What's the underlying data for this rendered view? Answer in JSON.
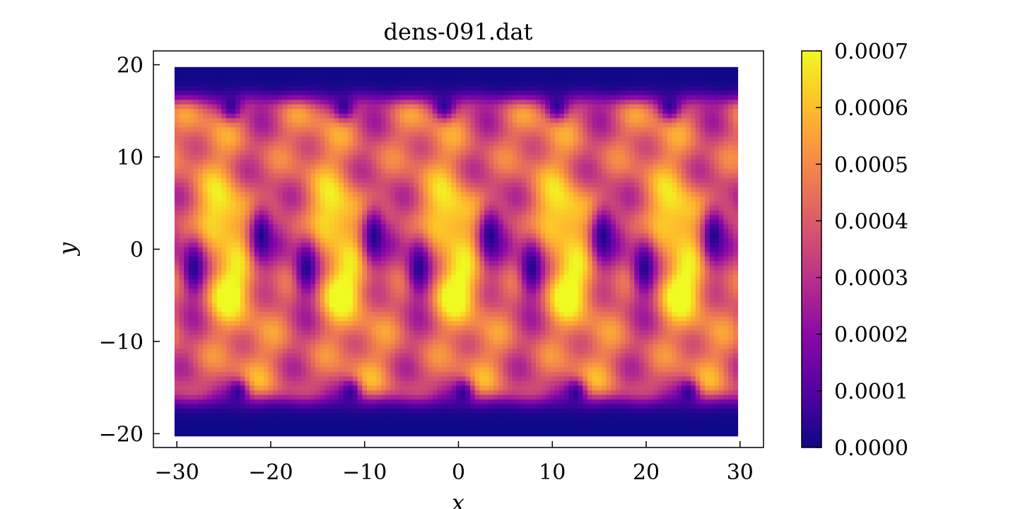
{
  "chart_data": {
    "type": "heatmap",
    "title": "dens-091.dat",
    "xlabel": "x",
    "ylabel": "y",
    "xlim": [
      -32.5,
      32.5
    ],
    "ylim": [
      -21.5,
      21.5
    ],
    "x_ticks": [
      -30,
      -20,
      -10,
      0,
      10,
      20,
      30
    ],
    "x_tick_labels": [
      "−30",
      "−20",
      "−10",
      "0",
      "10",
      "20",
      "30"
    ],
    "y_ticks": [
      -20,
      -10,
      0,
      10,
      20
    ],
    "y_tick_labels": [
      "−20",
      "−10",
      "0",
      "10",
      "20"
    ],
    "grid": false,
    "colormap": "plasma",
    "colorbar": {
      "min": 0.0,
      "max": 0.0007,
      "ticks": [
        0.0,
        0.0001,
        0.0002,
        0.0003,
        0.0004,
        0.0005,
        0.0006,
        0.0007
      ],
      "tick_labels": [
        "0.0000",
        "0.0001",
        "0.0002",
        "0.0003",
        "0.0004",
        "0.0005",
        "0.0006",
        "0.0007"
      ]
    },
    "field": {
      "x_range": [
        -30,
        29.5
      ],
      "y_range": [
        -20,
        19.5
      ],
      "grid_step": 0.5,
      "plateau_value": 0.0007,
      "empty_band_value": 0.0,
      "high_density_band": [
        -15,
        15
      ],
      "period_x": 12,
      "low_density_spots": [
        {
          "x": -28.2,
          "y": -2.0,
          "value": 5e-05
        },
        {
          "x": -21.0,
          "y": 1.5,
          "value": 5e-05
        },
        {
          "x": -16.2,
          "y": -2.0,
          "value": 5e-05
        },
        {
          "x": -9.0,
          "y": 1.5,
          "value": 5e-05
        },
        {
          "x": -4.2,
          "y": -2.0,
          "value": 5e-05
        },
        {
          "x": 3.4,
          "y": 1.5,
          "value": 5e-05
        },
        {
          "x": 7.8,
          "y": -2.0,
          "value": 5e-05
        },
        {
          "x": 15.4,
          "y": 1.5,
          "value": 5e-05
        },
        {
          "x": 19.8,
          "y": -2.0,
          "value": 5e-05
        },
        {
          "x": 27.2,
          "y": 1.5,
          "value": 5e-05
        }
      ],
      "high_density_spots": [
        {
          "x": -24.8,
          "y": 3.5,
          "value": 0.0007
        },
        {
          "x": -24.8,
          "y": -4.0,
          "value": 0.0007
        },
        {
          "x": -12.8,
          "y": 3.5,
          "value": 0.0007
        },
        {
          "x": -12.8,
          "y": -4.0,
          "value": 0.0007
        },
        {
          "x": -0.5,
          "y": 3.5,
          "value": 0.0007
        },
        {
          "x": -0.5,
          "y": -4.0,
          "value": 0.0007
        },
        {
          "x": 11.5,
          "y": 3.5,
          "value": 0.0007
        },
        {
          "x": 11.5,
          "y": -4.0,
          "value": 0.0007
        },
        {
          "x": 23.5,
          "y": 3.5,
          "value": 0.0007
        },
        {
          "x": 23.5,
          "y": -4.0,
          "value": 0.0007
        }
      ],
      "edge_notches": [
        {
          "x": -24.2,
          "y": 15.5
        },
        {
          "x": -12.2,
          "y": 15.5
        },
        {
          "x": -1.5,
          "y": 15.5
        },
        {
          "x": 10.5,
          "y": 15.5
        },
        {
          "x": 22.5,
          "y": 15.5
        },
        {
          "x": -23.5,
          "y": -15.5
        },
        {
          "x": -11.5,
          "y": -15.5
        },
        {
          "x": 0.5,
          "y": -15.5
        },
        {
          "x": 12.5,
          "y": -15.5
        },
        {
          "x": 24.5,
          "y": -15.5
        }
      ]
    }
  }
}
